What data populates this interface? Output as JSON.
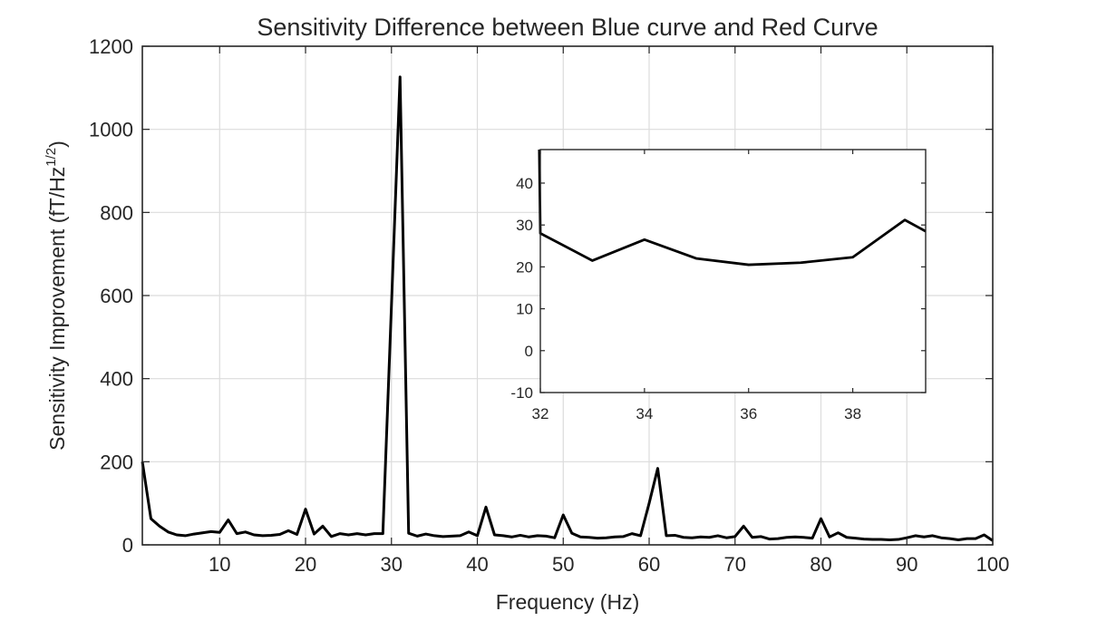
{
  "chart_data": [
    {
      "type": "line",
      "title": "Sensitivity Difference between Blue curve and Red Curve",
      "xlabel": "Frequency (Hz)",
      "ylabel_main": "Sensitivity Improvement (fT/Hz",
      "ylabel_sup": "1/2",
      "ylabel_close": ")",
      "xlim": [
        1,
        100
      ],
      "ylim": [
        0,
        1200
      ],
      "xticks": [
        10,
        20,
        30,
        40,
        50,
        60,
        70,
        80,
        90,
        100
      ],
      "yticks": [
        0,
        200,
        400,
        600,
        800,
        1000,
        1200
      ],
      "grid": true,
      "line_color": "#000000",
      "series": [
        {
          "x": [
            1,
            2,
            3,
            4,
            5,
            6,
            7,
            8,
            9,
            10,
            11,
            12,
            13,
            14,
            15,
            16,
            17,
            18,
            19,
            20,
            21,
            22,
            23,
            24,
            25,
            26,
            27,
            28,
            29,
            30,
            31,
            32,
            33,
            34,
            35,
            36,
            37,
            38,
            39,
            40,
            41,
            42,
            43,
            44,
            45,
            46,
            47,
            48,
            49,
            50,
            51,
            52,
            53,
            54,
            55,
            56,
            57,
            58,
            59,
            60,
            61,
            62,
            63,
            64,
            65,
            66,
            67,
            68,
            69,
            70,
            71,
            72,
            73,
            74,
            75,
            76,
            77,
            78,
            79,
            80,
            81,
            82,
            83,
            84,
            85,
            86,
            87,
            88,
            89,
            90,
            91,
            92,
            93,
            94,
            95,
            96,
            97,
            98,
            99,
            100
          ],
          "values": [
            200,
            63,
            45,
            31,
            24,
            22,
            26,
            29,
            32,
            30,
            60,
            27,
            31,
            24,
            22,
            23,
            25,
            34,
            25,
            86,
            26,
            45,
            20,
            27,
            24,
            27,
            24,
            27,
            27,
            575,
            1126,
            28,
            21,
            26,
            22,
            20,
            21,
            22,
            31,
            22,
            91,
            24,
            22,
            19,
            23,
            19,
            22,
            21,
            17,
            72,
            28,
            19,
            18,
            16,
            17,
            19,
            20,
            27,
            22,
            100,
            184,
            22,
            23,
            18,
            17,
            19,
            18,
            22,
            17,
            20,
            45,
            18,
            20,
            14,
            15,
            18,
            19,
            18,
            16,
            63,
            19,
            29,
            18,
            16,
            14,
            13,
            13,
            12,
            13,
            17,
            22,
            19,
            22,
            17,
            15,
            12,
            15,
            15,
            24,
            10
          ]
        }
      ]
    },
    {
      "type": "line",
      "xlim": [
        32,
        39.4
      ],
      "ylim": [
        -10,
        48
      ],
      "xticks": [
        32,
        34,
        36,
        38
      ],
      "yticks": [
        -10,
        0,
        10,
        20,
        30,
        40
      ],
      "grid": false,
      "line_color": "#000000",
      "series": [
        {
          "x": [
            31.98,
            32,
            33,
            34,
            35,
            36,
            37,
            38,
            39,
            39.4
          ],
          "values": [
            48,
            28,
            21.5,
            26.5,
            22,
            20.5,
            21,
            22.3,
            31.2,
            28.5
          ]
        }
      ]
    }
  ]
}
